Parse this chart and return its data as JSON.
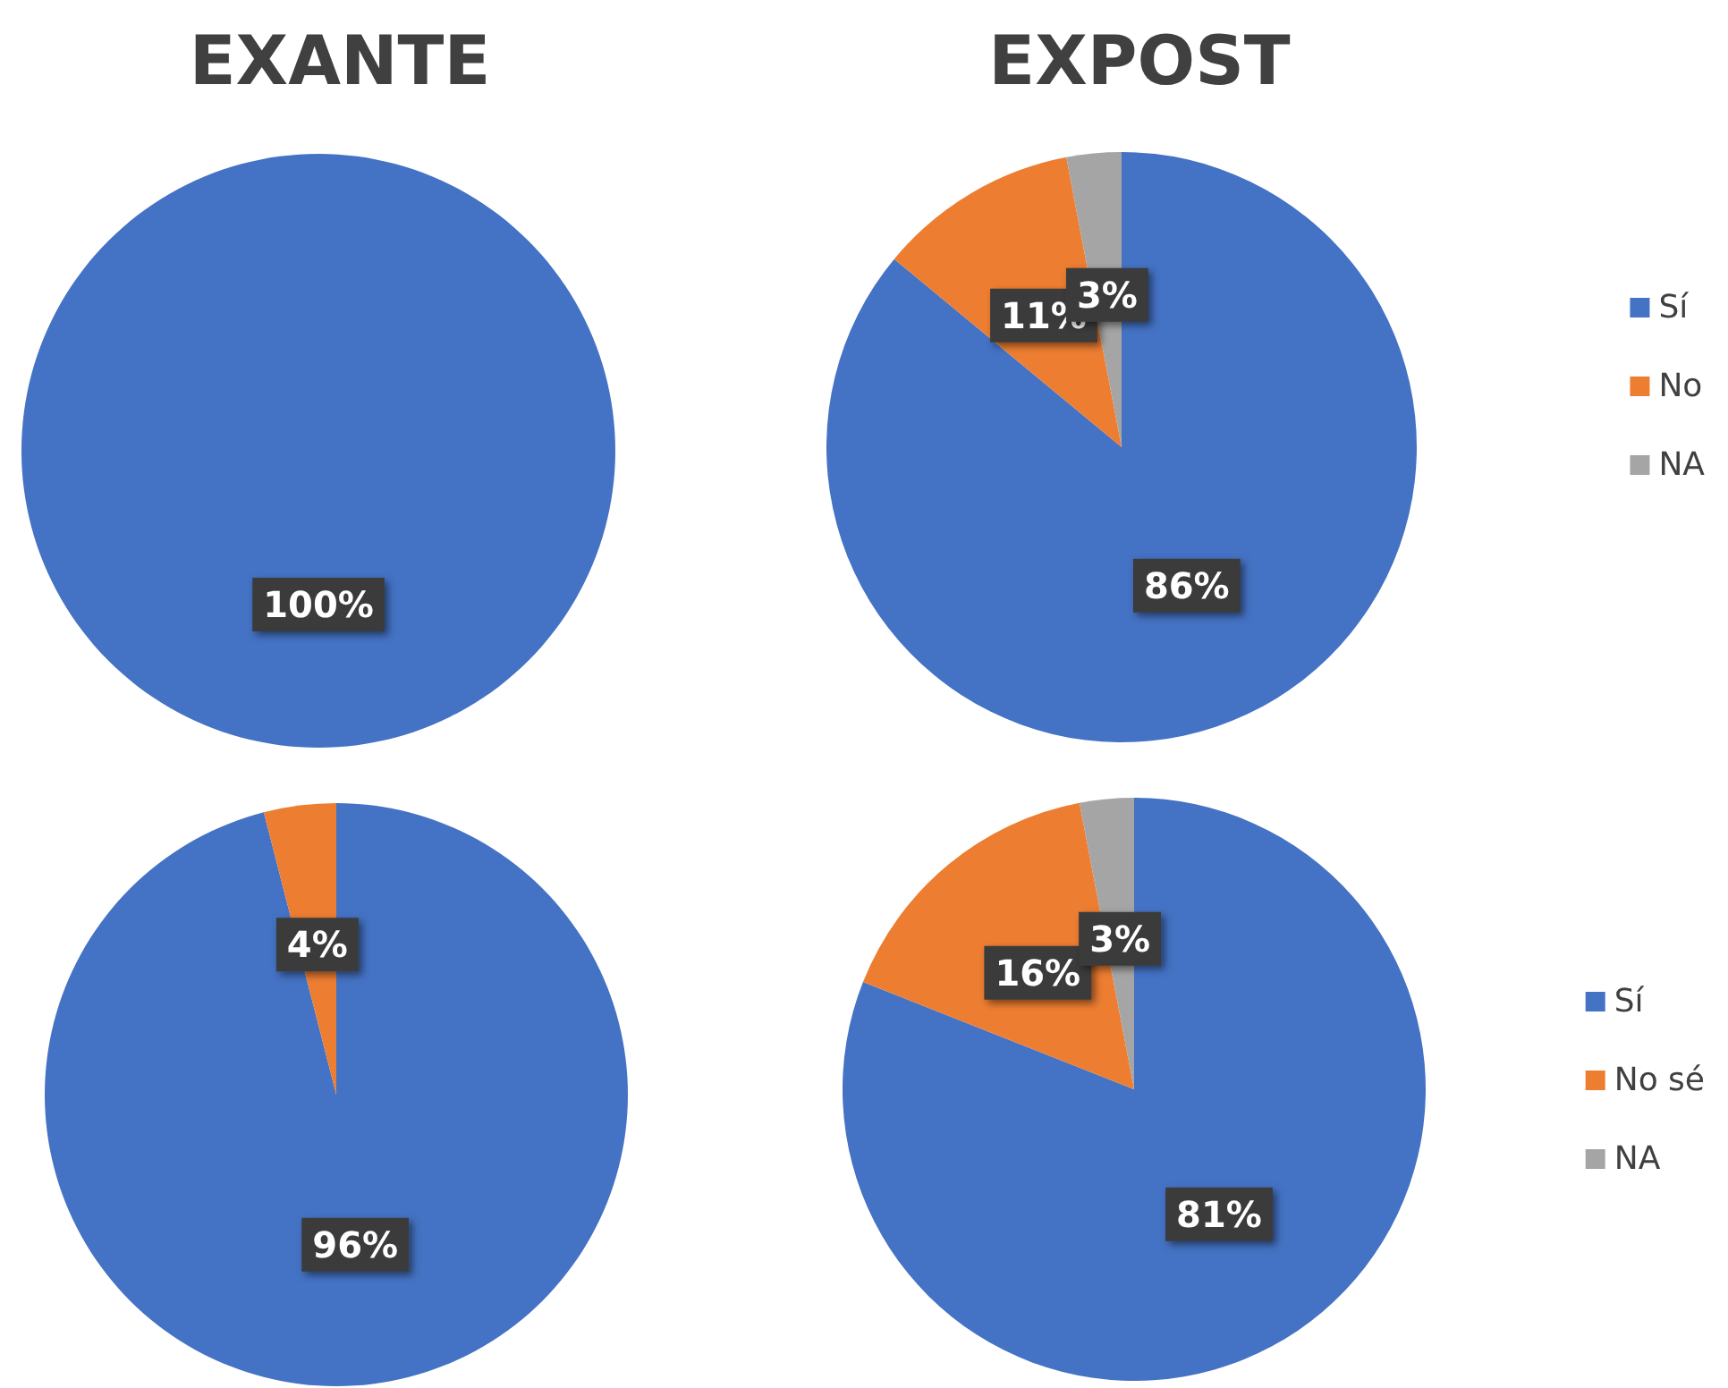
{
  "chart_data": [
    {
      "type": "pie",
      "title": "EXANTE",
      "categories": [
        null
      ],
      "values": [
        100
      ],
      "colors": [
        "#4472c4"
      ],
      "value_labels": [
        "100%"
      ],
      "legend": false
    },
    {
      "type": "pie",
      "title": "EXPOST",
      "categories": [
        "Sí",
        "No",
        "NA"
      ],
      "values": [
        86,
        11,
        3
      ],
      "colors": [
        "#4472c4",
        "#ed7d31",
        "#a5a5a5"
      ],
      "value_labels": [
        "86%",
        "11%",
        "3%"
      ],
      "legend": "right"
    },
    {
      "type": "pie",
      "categories": [
        null,
        null
      ],
      "values": [
        96,
        4
      ],
      "colors": [
        "#4472c4",
        "#ed7d31"
      ],
      "value_labels": [
        "96%",
        "4%"
      ],
      "legend": false
    },
    {
      "type": "pie",
      "categories": [
        "Sí",
        "No sé",
        "NA"
      ],
      "values": [
        81,
        16,
        3
      ],
      "colors": [
        "#4472c4",
        "#ed7d31",
        "#a5a5a5"
      ],
      "value_labels": [
        "81%",
        "16%",
        "3%"
      ],
      "legend": "right"
    }
  ]
}
